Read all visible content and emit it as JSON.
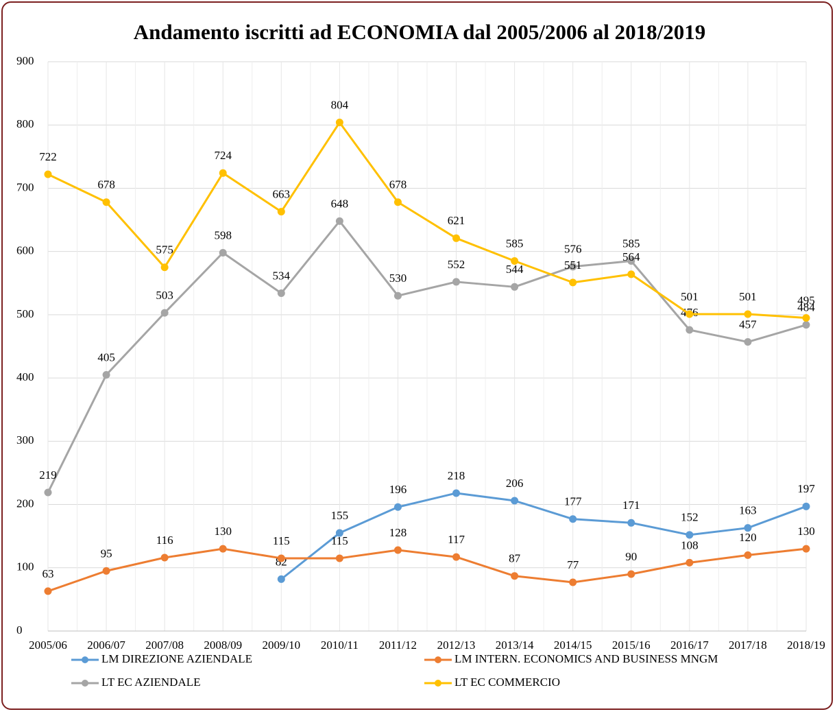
{
  "chart_data": {
    "type": "line",
    "title": "Andamento iscritti ad ECONOMIA dal 2005/2006 al 2018/2019",
    "categories": [
      "2005/06",
      "2006/07",
      "2007/08",
      "2008/09",
      "2009/10",
      "2010/11",
      "2011/12",
      "2012/13",
      "2013/14",
      "2014/15",
      "2015/16",
      "2016/17",
      "2017/18",
      "2018/19"
    ],
    "series": [
      {
        "name": "LM DIREZIONE AZIENDALE",
        "color": "#5b9bd5",
        "values": [
          null,
          null,
          null,
          null,
          82,
          155,
          196,
          218,
          206,
          177,
          171,
          152,
          163,
          197
        ]
      },
      {
        "name": "LM INTERN. ECONOMICS AND BUSINESS MNGM",
        "color": "#ed7d31",
        "values": [
          63,
          95,
          116,
          130,
          115,
          115,
          128,
          117,
          87,
          77,
          90,
          108,
          120,
          130
        ]
      },
      {
        "name": "LT EC AZIENDALE",
        "color": "#a5a5a5",
        "values": [
          219,
          405,
          503,
          598,
          534,
          648,
          530,
          552,
          544,
          576,
          585,
          476,
          457,
          484
        ]
      },
      {
        "name": "LT EC COMMERCIO",
        "color": "#ffc000",
        "values": [
          722,
          678,
          575,
          724,
          663,
          804,
          678,
          621,
          585,
          551,
          564,
          501,
          501,
          495
        ]
      }
    ],
    "ylim": [
      0,
      900
    ],
    "yticks": [
      0,
      100,
      200,
      300,
      400,
      500,
      600,
      700,
      800,
      900
    ],
    "grid": true,
    "legend": "bottom"
  }
}
